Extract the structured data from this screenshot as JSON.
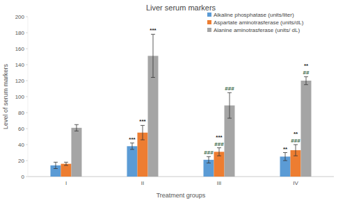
{
  "chart_data": {
    "type": "bar",
    "title": "Liver serum markers",
    "x_label": "Treatment groups",
    "y_label": "Level of serum markers",
    "categories": [
      "I",
      "II",
      "III",
      "IV"
    ],
    "ylim": [
      0,
      200
    ],
    "yticks": [
      0,
      20,
      40,
      60,
      80,
      100,
      120,
      140,
      160,
      180,
      200
    ],
    "grid": false,
    "legend": "top-right",
    "series": [
      {
        "name": "Alkaline phosphatase (units/liter)",
        "color": "#5b9bd5",
        "values": [
          14,
          38,
          21,
          25
        ],
        "errors": [
          4,
          4,
          4,
          5
        ],
        "annotations": [
          null,
          [
            "***"
          ],
          [
            "###"
          ],
          [
            "**"
          ]
        ]
      },
      {
        "name": "Aspartate aminotrasferase (units/dL)",
        "color": "#ed7d31",
        "values": [
          16,
          55,
          31,
          33
        ],
        "errors": [
          2,
          9,
          5,
          7
        ],
        "annotations": [
          null,
          [
            "***"
          ],
          [
            "***",
            "###"
          ],
          [
            "**",
            "###"
          ]
        ]
      },
      {
        "name": "Alanine aminotrasferase (units/ dL)",
        "color": "#a5a5a5",
        "values": [
          61,
          151,
          89,
          120
        ],
        "errors": [
          4,
          27,
          16,
          5
        ],
        "annotations": [
          null,
          [
            "***"
          ],
          [
            "###"
          ],
          [
            "**",
            "##"
          ]
        ]
      }
    ]
  }
}
